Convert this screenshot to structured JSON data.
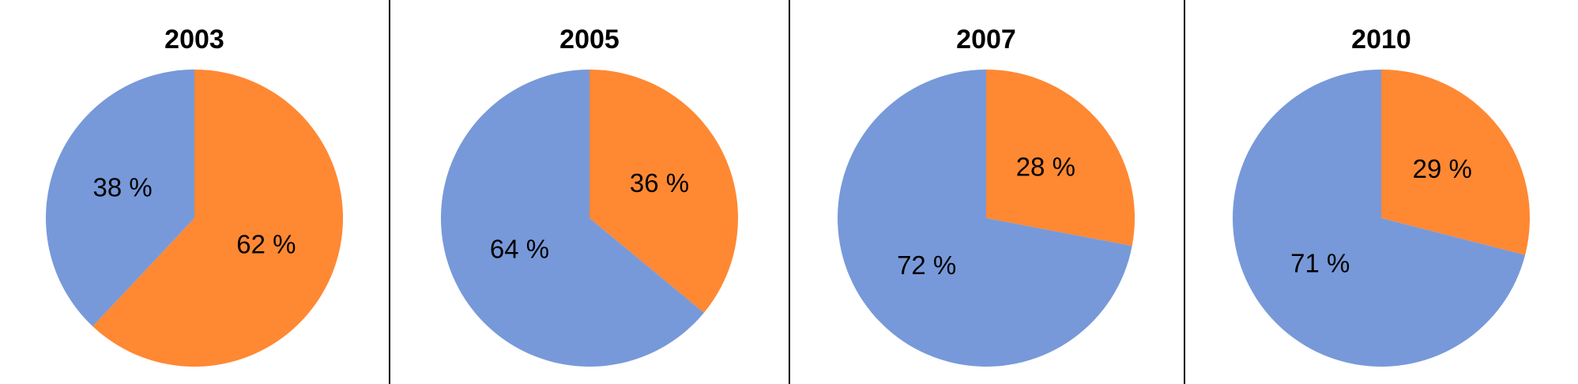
{
  "chart_data": [
    {
      "type": "pie",
      "title": "2003",
      "slices": [
        {
          "value": 62,
          "label": "62 %",
          "color": "#FF8833"
        },
        {
          "value": 38,
          "label": "38 %",
          "color": "#7799D9"
        }
      ]
    },
    {
      "type": "pie",
      "title": "2005",
      "slices": [
        {
          "value": 36,
          "label": "36 %",
          "color": "#FF8833"
        },
        {
          "value": 64,
          "label": "64 %",
          "color": "#7799D9"
        }
      ]
    },
    {
      "type": "pie",
      "title": "2007",
      "slices": [
        {
          "value": 28,
          "label": "28 %",
          "color": "#FF8833"
        },
        {
          "value": 72,
          "label": "72 %",
          "color": "#7799D9"
        }
      ]
    },
    {
      "type": "pie",
      "title": "2010",
      "slices": [
        {
          "value": 29,
          "label": "29 %",
          "color": "#FF8833"
        },
        {
          "value": 71,
          "label": "71 %",
          "color": "#7799D9"
        }
      ]
    }
  ]
}
